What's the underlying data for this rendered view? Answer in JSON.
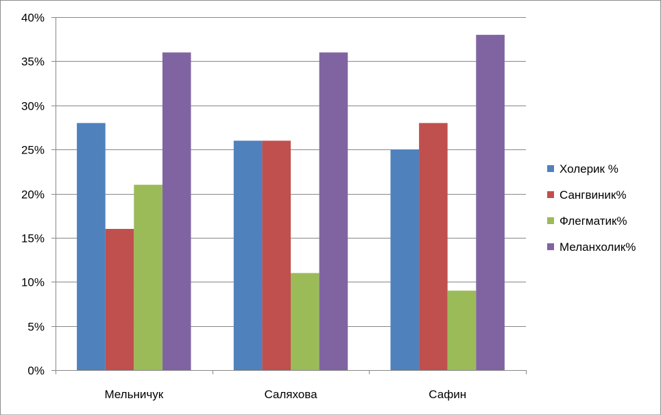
{
  "chart_data": {
    "type": "bar",
    "categories": [
      "Мельничук",
      "Саляхова",
      "Сафин"
    ],
    "series": [
      {
        "name": "Холерик %",
        "color": "#4f81bd",
        "values": [
          28,
          26,
          25
        ]
      },
      {
        "name": "Сангвиник%",
        "color": "#c0504d",
        "values": [
          16,
          26,
          28
        ]
      },
      {
        "name": "Флегматик%",
        "color": "#9bbb59",
        "values": [
          21,
          11,
          9
        ]
      },
      {
        "name": "Меланхолик%",
        "color": "#8064a2",
        "values": [
          36,
          36,
          38
        ]
      }
    ],
    "ylim": [
      0,
      40
    ],
    "yticks": [
      0,
      5,
      10,
      15,
      20,
      25,
      30,
      35,
      40
    ],
    "ytick_labels": [
      "0%",
      "5%",
      "10%",
      "15%",
      "20%",
      "25%",
      "30%",
      "35%",
      "40%"
    ],
    "grid": true,
    "legend_position": "right"
  }
}
